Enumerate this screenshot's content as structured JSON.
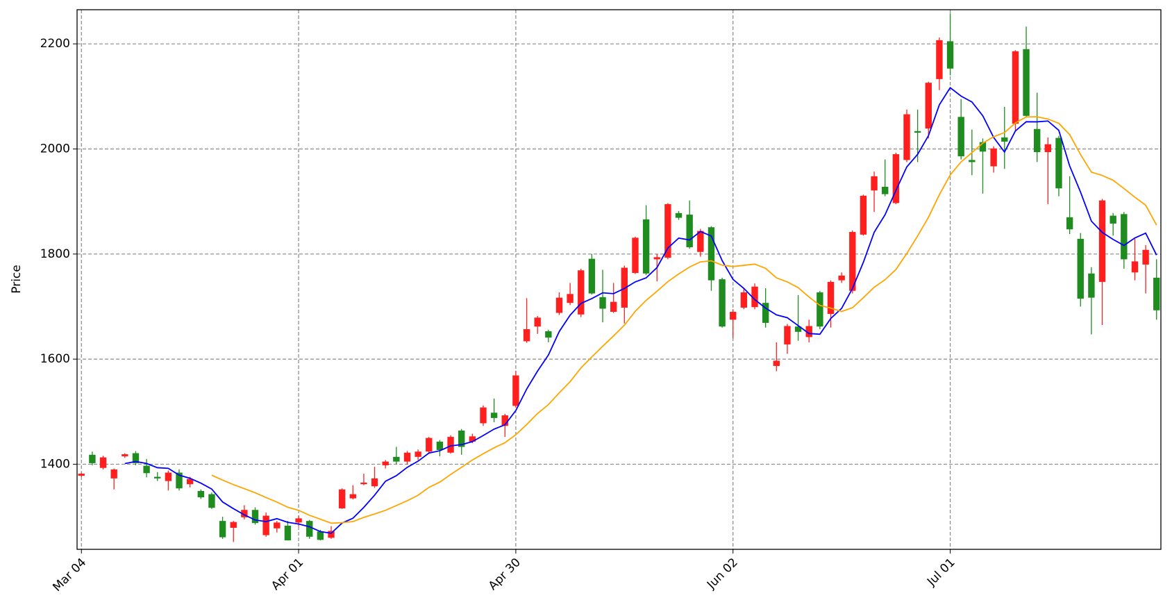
{
  "chart_data": {
    "type": "candlestick",
    "ylabel": "Price",
    "categories": [
      "Mar 04",
      null,
      null,
      null,
      null,
      null,
      null,
      null,
      null,
      null,
      null,
      null,
      null,
      null,
      null,
      null,
      null,
      null,
      null,
      null,
      "Apr 01",
      null,
      null,
      null,
      null,
      null,
      null,
      null,
      null,
      null,
      null,
      null,
      null,
      null,
      null,
      null,
      null,
      null,
      null,
      null,
      "Apr 30",
      null,
      null,
      null,
      null,
      null,
      null,
      null,
      null,
      null,
      null,
      null,
      null,
      null,
      null,
      null,
      null,
      null,
      null,
      null,
      "Jun 02",
      null,
      null,
      null,
      null,
      null,
      null,
      null,
      null,
      null,
      null,
      null,
      null,
      null,
      null,
      null,
      null,
      null,
      null,
      null,
      "Jul 01",
      null,
      null,
      null,
      null,
      null,
      null,
      null,
      null,
      null,
      null,
      null,
      null,
      null,
      null,
      null,
      null,
      null,
      null,
      null
    ],
    "open": [
      1378,
      1418,
      1393,
      1373,
      1415,
      1421,
      1397,
      1376,
      1368,
      1384,
      1362,
      1349,
      1343,
      1292,
      1279,
      1299,
      1313,
      1265,
      1278,
      1283,
      1289,
      1292,
      1272,
      1260,
      1316,
      1335,
      1362,
      1358,
      1398,
      1414,
      1405,
      1414,
      1424,
      1443,
      1422,
      1464,
      1443,
      1478,
      1498,
      1473,
      1511,
      1634,
      1662,
      1653,
      1688,
      1707,
      1685,
      1791,
      1718,
      1690,
      1698,
      1764,
      1866,
      1790,
      1793,
      1878,
      1875,
      1804,
      1851,
      1752,
      1675,
      1698,
      1699,
      1707,
      1587,
      1628,
      1662,
      1642,
      1727,
      1686,
      1750,
      1730,
      1837,
      1921,
      1928,
      1897,
      1979,
      2034,
      2039,
      2133,
      2205,
      2061,
      1979,
      2013,
      1967,
      2022,
      2048,
      2190,
      2038,
      1994,
      2021,
      1870,
      1829,
      1763,
      1747,
      1873,
      1876,
      1765,
      1780,
      1755
    ],
    "high": [
      1384,
      1424,
      1416,
      1392,
      1421,
      1425,
      1410,
      1385,
      1388,
      1390,
      1376,
      1352,
      1346,
      1300,
      1292,
      1322,
      1318,
      1308,
      1292,
      1292,
      1302,
      1294,
      1275,
      1282,
      1354,
      1360,
      1382,
      1395,
      1408,
      1433,
      1425,
      1428,
      1452,
      1446,
      1455,
      1467,
      1458,
      1512,
      1525,
      1496,
      1578,
      1716,
      1682,
      1656,
      1727,
      1745,
      1772,
      1800,
      1770,
      1745,
      1778,
      1833,
      1893,
      1800,
      1897,
      1882,
      1902,
      1848,
      1853,
      1755,
      1695,
      1735,
      1744,
      1735,
      1632,
      1667,
      1722,
      1675,
      1730,
      1750,
      1765,
      1845,
      1913,
      1957,
      1980,
      1993,
      2075,
      2075,
      2128,
      2212,
      2258,
      2095,
      2037,
      2020,
      2005,
      2080,
      2188,
      2233,
      2107,
      2022,
      2025,
      1948,
      1840,
      1775,
      1905,
      1878,
      1880,
      1829,
      1817,
      1790
    ],
    "low": [
      1376,
      1398,
      1390,
      1352,
      1412,
      1398,
      1375,
      1368,
      1350,
      1350,
      1356,
      1334,
      1315,
      1258,
      1252,
      1295,
      1285,
      1262,
      1270,
      1255,
      1282,
      1258,
      1255,
      1258,
      1315,
      1333,
      1360,
      1355,
      1392,
      1400,
      1400,
      1408,
      1420,
      1415,
      1420,
      1418,
      1440,
      1473,
      1480,
      1452,
      1508,
      1631,
      1648,
      1632,
      1684,
      1703,
      1680,
      1723,
      1670,
      1688,
      1668,
      1762,
      1760,
      1748,
      1790,
      1865,
      1810,
      1795,
      1730,
      1660,
      1640,
      1695,
      1695,
      1660,
      1577,
      1610,
      1635,
      1632,
      1657,
      1660,
      1745,
      1725,
      1835,
      1880,
      1910,
      1895,
      1975,
      1975,
      2020,
      2112,
      2140,
      1980,
      1950,
      1915,
      1955,
      1962,
      2035,
      2060,
      1975,
      1895,
      1910,
      1838,
      1700,
      1647,
      1665,
      1835,
      1772,
      1750,
      1725,
      1675
    ],
    "close": [
      1382,
      1402,
      1413,
      1390,
      1419,
      1402,
      1383,
      1373,
      1384,
      1354,
      1372,
      1337,
      1317,
      1261,
      1290,
      1313,
      1288,
      1302,
      1289,
      1255,
      1297,
      1262,
      1256,
      1273,
      1352,
      1343,
      1365,
      1373,
      1405,
      1405,
      1422,
      1424,
      1450,
      1427,
      1452,
      1433,
      1453,
      1508,
      1488,
      1493,
      1569,
      1657,
      1679,
      1641,
      1717,
      1724,
      1769,
      1725,
      1696,
      1709,
      1774,
      1831,
      1763,
      1794,
      1895,
      1869,
      1813,
      1844,
      1750,
      1662,
      1690,
      1727,
      1738,
      1669,
      1597,
      1663,
      1652,
      1663,
      1662,
      1747,
      1759,
      1842,
      1911,
      1948,
      1914,
      1990,
      2066,
      2031,
      2126,
      2207,
      2153,
      1986,
      1975,
      1995,
      2001,
      2014,
      2186,
      2063,
      1994,
      2009,
      1925,
      1847,
      1715,
      1717,
      1902,
      1858,
      1790,
      1786,
      1808,
      1693
    ],
    "up_color": "#ff1f1f",
    "down_color": "#1e8c1e",
    "series": [
      {
        "color": "#0000ff",
        "values": [
          null,
          null,
          null,
          null,
          1401.2,
          1405.2,
          1401.4,
          1393.4,
          1392.2,
          1379.2,
          1373.2,
          1364,
          1352.8,
          1328.2,
          1315.4,
          1303.6,
          1293.8,
          1290.8,
          1296.4,
          1289.4,
          1286.2,
          1281,
          1271.8,
          1268.6,
          1288,
          1297.2,
          1317.8,
          1341.2,
          1367.6,
          1378.2,
          1394,
          1405.8,
          1421.2,
          1425.6,
          1435,
          1437.2,
          1443,
          1454.6,
          1466.8,
          1475,
          1502.2,
          1543,
          1577.2,
          1607.8,
          1652.6,
          1683.6,
          1706,
          1715.2,
          1726.2,
          1724.6,
          1734.6,
          1747,
          1754.6,
          1774.2,
          1811.4,
          1830.4,
          1826.8,
          1843,
          1834.2,
          1787.6,
          1751.8,
          1734.6,
          1713.4,
          1697.2,
          1684.2,
          1678.8,
          1663.8,
          1648.8,
          1647.4,
          1677.4,
          1696.6,
          1734.6,
          1784.2,
          1841.4,
          1874.8,
          1921,
          1965.8,
          1989.8,
          2025.4,
          2084,
          2116.6,
          2100.6,
          2089.4,
          2063.2,
          2022,
          1994.2,
          2034.2,
          2051.8,
          2051.6,
          2053.2,
          2035.4,
          1967.6,
          1918,
          1862.6,
          1841.2,
          1827.8,
          1816.4,
          1830.6,
          1839.8,
          1798
        ]
      },
      {
        "color": "#ffa500",
        "values": [
          null,
          null,
          null,
          null,
          null,
          null,
          null,
          null,
          null,
          null,
          null,
          null,
          1379.1,
          1369.8,
          1361.2,
          1353.5,
          1345.6,
          1336.6,
          1327.9,
          1318.1,
          1312.2,
          1302.8,
          1295.3,
          1287.7,
          1288.8,
          1290.8,
          1298.8,
          1305.2,
          1312.3,
          1321.3,
          1330.5,
          1340.9,
          1355.9,
          1365.9,
          1380.5,
          1394.2,
          1408,
          1420,
          1431.2,
          1441,
          1456.1,
          1475.5,
          1496.5,
          1513.4,
          1535.9,
          1557,
          1583.3,
          1604.3,
          1624.5,
          1644.2,
          1664.7,
          1691.1,
          1711.8,
          1729.2,
          1747.5,
          1762.1,
          1775.3,
          1785.1,
          1787.1,
          1778.8,
          1776.2,
          1778.5,
          1780.8,
          1772.7,
          1754.7,
          1747,
          1736.1,
          1718.2,
          1702.3,
          1697.2,
          1690.7,
          1697.8,
          1716.9,
          1736.8,
          1751.2,
          1770.5,
          1801.1,
          1834.5,
          1870.1,
          1912.8,
          1950.5,
          1975.4,
          1992.9,
          2011.1,
          2023.3,
          2031.2,
          2049.5,
          2061,
          2061.3,
          2056.9,
          2048.8,
          2027.3,
          1989.5,
          1955.9,
          1949.5,
          1940.5,
          1924.7,
          1908.2,
          1892.9,
          1855
        ]
      }
    ],
    "ylim": [
      1238,
      2265
    ],
    "yticks": [
      1400,
      1600,
      1800,
      2000,
      2200
    ],
    "grid": true
  }
}
